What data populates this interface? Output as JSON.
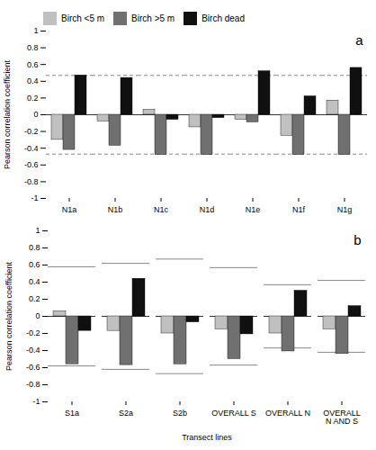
{
  "chart_data": [
    {
      "type": "bar",
      "annotations": [
        "a"
      ],
      "categories": [
        "N1a",
        "N1b",
        "N1c",
        "N1d",
        "N1e",
        "N1f",
        "N1g"
      ],
      "series": [
        {
          "name": "Birch <5 m",
          "color": "#c0c0c0",
          "values": [
            -0.3,
            -0.08,
            0.06,
            -0.15,
            -0.06,
            -0.25,
            0.17
          ]
        },
        {
          "name": "Birch >5 m",
          "color": "#707070",
          "values": [
            -0.42,
            -0.37,
            -0.48,
            -0.48,
            -0.09,
            -0.48,
            -0.48
          ]
        },
        {
          "name": "Birch dead",
          "color": "#101010",
          "values": [
            0.47,
            0.44,
            -0.06,
            -0.04,
            0.52,
            0.22,
            0.56
          ]
        }
      ],
      "significance": {
        "upper": 0.47,
        "lower": -0.47,
        "color": "#888888",
        "line_style": "dashed"
      },
      "ylabel": "Pearson correlation coefficient",
      "ylim": [
        -1.0,
        1.0
      ],
      "yticks": [
        -1,
        -0.8,
        -0.6,
        -0.4,
        -0.2,
        0,
        0.2,
        0.4,
        0.6,
        0.8,
        1
      ],
      "legend": "upper left"
    },
    {
      "type": "bar",
      "annotations": [
        "b"
      ],
      "categories": [
        "S1a",
        "S2a",
        "S2b",
        "OVERALL S",
        "OVERALL N",
        "OVERALL\nN AND S"
      ],
      "series": [
        {
          "name": "Birch <5 m",
          "color": "#c0c0c0",
          "values": [
            0.06,
            -0.17,
            -0.2,
            -0.15,
            -0.2,
            -0.15
          ]
        },
        {
          "name": "Birch >5 m",
          "color": "#707070",
          "values": [
            -0.56,
            -0.57,
            -0.56,
            -0.5,
            -0.41,
            -0.44
          ]
        },
        {
          "name": "Birch dead",
          "color": "#101010",
          "values": [
            -0.17,
            0.44,
            -0.07,
            -0.21,
            0.3,
            0.12
          ]
        }
      ],
      "significance": {
        "upper": [
          0.58,
          0.62,
          0.67,
          0.57,
          0.37,
          0.42
        ],
        "lower": [
          -0.58,
          -0.62,
          -0.67,
          -0.57,
          -0.37,
          -0.42
        ],
        "color": "#888888",
        "line_style": "solid"
      },
      "ylabel": "Pearson correlation coefficient",
      "xlabel": "Transect lines",
      "ylim": [
        -1.0,
        1.0
      ],
      "yticks": [
        -1,
        -0.8,
        -0.6,
        -0.4,
        -0.2,
        0,
        0.2,
        0.4,
        0.6,
        0.8,
        1
      ]
    }
  ]
}
